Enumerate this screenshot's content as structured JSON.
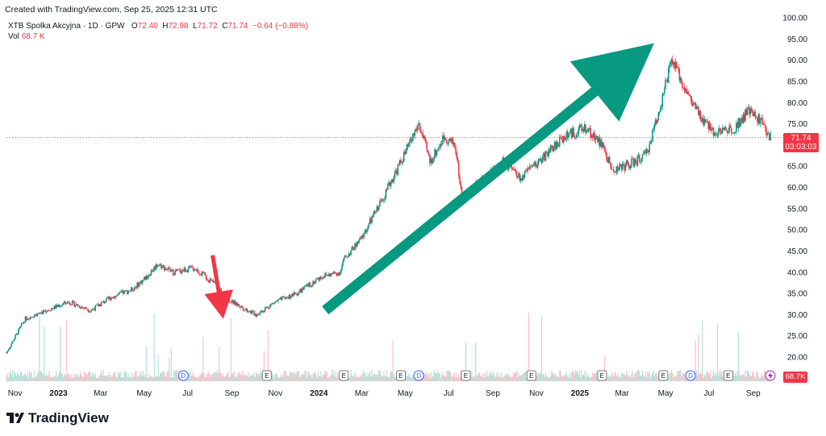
{
  "header": {
    "created": "Created with TradingView.com, Sep 25, 2025 12:31 UTC",
    "symbol": "XTB Spolka Akcyjna · 1D · GPW",
    "o_label": "O",
    "o_value": "72.40",
    "h_label": "H",
    "h_value": "72.98",
    "l_label": "L",
    "l_value": "71.72",
    "c_label": "C",
    "c_value": "71.74",
    "change": "−0.64 (−0.88%)",
    "vol_label": "Vol",
    "vol_value": "68.7 K"
  },
  "price_tag": {
    "price": "71.74",
    "countdown": "03:03:03"
  },
  "vol_tag": "68.7K",
  "logo_text": "TradingView",
  "colors": {
    "up": "#089981",
    "down": "#f23645",
    "arrow_up": "#089981",
    "arrow_down": "#f23645"
  },
  "chart_data": {
    "type": "candlestick",
    "y_axis": {
      "min": 20,
      "max": 100,
      "step": 5,
      "ticks": [
        "100.00",
        "95.00",
        "90.00",
        "85.00",
        "80.00",
        "75.00",
        "70.00",
        "65.00",
        "60.00",
        "55.00",
        "50.00",
        "45.00",
        "40.00",
        "35.00",
        "30.00",
        "25.00",
        "20.00"
      ]
    },
    "x_axis": {
      "ticks": [
        {
          "label": "Nov",
          "bold": false
        },
        {
          "label": "2023",
          "bold": true
        },
        {
          "label": "Mar",
          "bold": false
        },
        {
          "label": "May",
          "bold": false
        },
        {
          "label": "Jul",
          "bold": false
        },
        {
          "label": "Sep",
          "bold": false
        },
        {
          "label": "Nov",
          "bold": false
        },
        {
          "label": "2024",
          "bold": true
        },
        {
          "label": "Mar",
          "bold": false
        },
        {
          "label": "May",
          "bold": false
        },
        {
          "label": "Jul",
          "bold": false
        },
        {
          "label": "Sep",
          "bold": false
        },
        {
          "label": "Nov",
          "bold": false
        },
        {
          "label": "2025",
          "bold": true
        },
        {
          "label": "Mar",
          "bold": false
        },
        {
          "label": "May",
          "bold": false
        },
        {
          "label": "Jul",
          "bold": false
        },
        {
          "label": "Sep",
          "bold": false
        }
      ]
    },
    "last_price": 71.74,
    "price_path": [
      [
        "2022-10-20",
        21
      ],
      [
        "2022-11-15",
        29
      ],
      [
        "2022-12-15",
        31
      ],
      [
        "2023-01-15",
        33
      ],
      [
        "2023-02-15",
        31
      ],
      [
        "2023-03-15",
        34
      ],
      [
        "2023-04-15",
        36
      ],
      [
        "2023-05-05",
        39
      ],
      [
        "2023-05-20",
        42
      ],
      [
        "2023-06-10",
        40
      ],
      [
        "2023-07-10",
        41
      ],
      [
        "2023-08-10",
        37
      ],
      [
        "2023-09-01",
        33
      ],
      [
        "2023-10-05",
        30
      ],
      [
        "2023-11-01",
        33
      ],
      [
        "2023-12-01",
        35
      ],
      [
        "2024-01-05",
        39
      ],
      [
        "2024-01-31",
        40
      ],
      [
        "2024-02-05",
        43
      ],
      [
        "2024-03-01",
        48
      ],
      [
        "2024-04-01",
        58
      ],
      [
        "2024-05-01",
        68
      ],
      [
        "2024-05-20",
        75
      ],
      [
        "2024-06-05",
        66
      ],
      [
        "2024-06-25",
        72
      ],
      [
        "2024-07-10",
        70
      ],
      [
        "2024-07-20",
        57
      ],
      [
        "2024-08-20",
        62
      ],
      [
        "2024-09-15",
        66
      ],
      [
        "2024-10-10",
        62
      ],
      [
        "2024-11-10",
        67
      ],
      [
        "2024-12-10",
        72
      ],
      [
        "2025-01-10",
        74
      ],
      [
        "2025-02-01",
        70
      ],
      [
        "2025-02-15",
        64
      ],
      [
        "2025-03-20",
        66
      ],
      [
        "2025-04-05",
        68
      ],
      [
        "2025-04-25",
        80
      ],
      [
        "2025-05-10",
        90
      ],
      [
        "2025-06-01",
        82
      ],
      [
        "2025-06-20",
        76
      ],
      [
        "2025-07-10",
        73
      ],
      [
        "2025-08-05",
        74
      ],
      [
        "2025-08-25",
        78
      ],
      [
        "2025-09-10",
        76
      ],
      [
        "2025-09-25",
        71.74
      ]
    ],
    "event_markers": [
      {
        "date": "2023-06-25",
        "label": "D"
      },
      {
        "date": "2023-10-20",
        "label": "E"
      },
      {
        "date": "2024-02-05",
        "label": "E"
      },
      {
        "date": "2024-04-25",
        "label": "E"
      },
      {
        "date": "2024-05-20",
        "label": "D"
      },
      {
        "date": "2024-07-25",
        "label": "E"
      },
      {
        "date": "2024-10-25",
        "label": "E"
      },
      {
        "date": "2025-02-01",
        "label": "E"
      },
      {
        "date": "2025-04-28",
        "label": "E"
      },
      {
        "date": "2025-06-05",
        "label": "D"
      },
      {
        "date": "2025-07-28",
        "label": "E"
      }
    ],
    "arrows": [
      {
        "color": "down",
        "from": [
          "2023-08-05",
          44
        ],
        "to": [
          "2023-08-20",
          29
        ]
      },
      {
        "color": "up",
        "from": [
          "2024-01-10",
          31
        ],
        "to": [
          "2025-04-15",
          94
        ]
      }
    ]
  }
}
